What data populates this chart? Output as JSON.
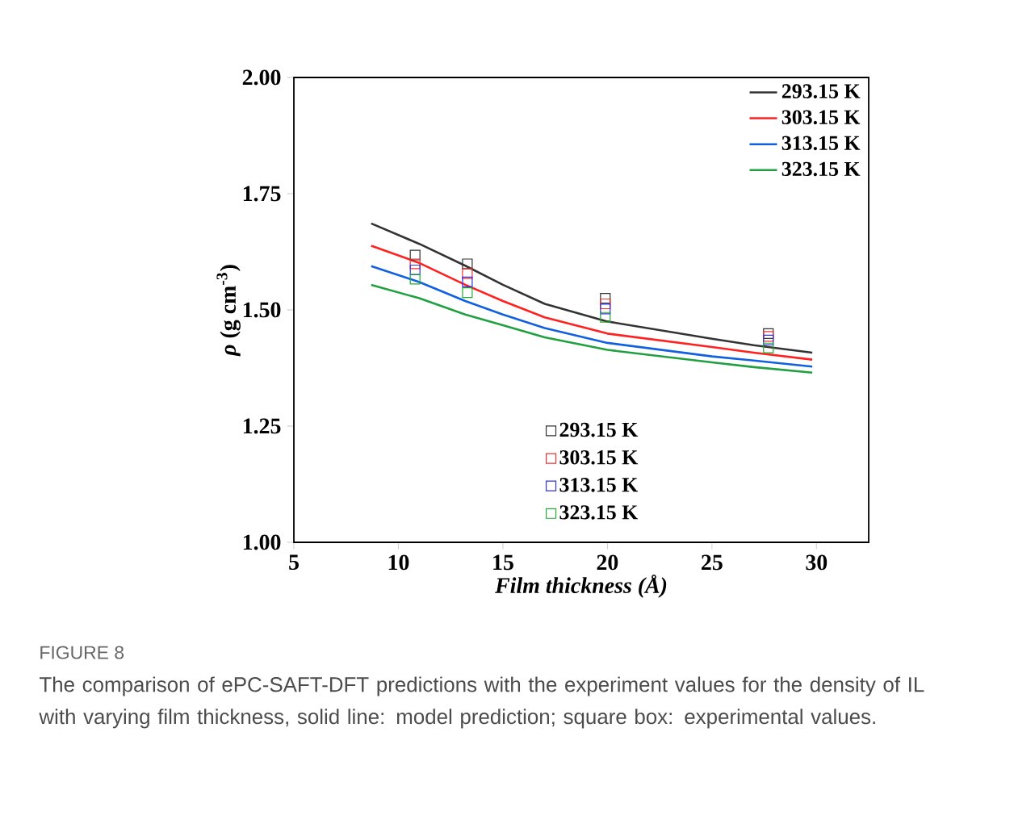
{
  "chart_data": {
    "type": "line",
    "xlabel": "*Film thickness (Å)*",
    "ylabel": "*ρ* (g cm$^{-3}$)",
    "xlim": [
      5,
      32.5
    ],
    "ylim": [
      1,
      2
    ],
    "xticks": [
      5,
      10,
      15,
      20,
      25,
      30
    ],
    "yticks": [
      {
        "value": 1,
        "label": "1.00"
      },
      {
        "value": 1.25,
        "label": "1.25"
      },
      {
        "value": 1.5,
        "label": "1.50"
      },
      {
        "value": 1.75,
        "label": "1.75"
      },
      {
        "value": 2,
        "label": "2.00"
      }
    ],
    "legend": "top right",
    "grid": false,
    "series": [
      {
        "name": "293.15 K",
        "color": "#333333",
        "x": [
          8.7,
          11,
          13.2,
          15,
          17,
          20,
          25,
          27,
          29.8
        ],
        "values": [
          1.686,
          1.642,
          1.595,
          1.554,
          1.513,
          1.475,
          1.438,
          1.424,
          1.408
        ]
      },
      {
        "name": "303.15 K",
        "color": "#ff2020",
        "x": [
          8.7,
          11,
          13.2,
          15,
          17,
          20,
          25,
          27,
          29.8
        ],
        "values": [
          1.638,
          1.601,
          1.554,
          1.519,
          1.484,
          1.449,
          1.42,
          1.408,
          1.393
        ]
      },
      {
        "name": "313.15 K",
        "color": "#1060e0",
        "x": [
          8.7,
          11,
          13.2,
          15,
          17,
          20,
          25,
          27,
          29.8
        ],
        "values": [
          1.594,
          1.56,
          1.519,
          1.49,
          1.461,
          1.429,
          1.4,
          1.391,
          1.378
        ]
      },
      {
        "name": "323.15 K",
        "color": "#20a040",
        "x": [
          8.7,
          11,
          13.2,
          15,
          17,
          20,
          25,
          27,
          29.8
        ],
        "values": [
          1.554,
          1.525,
          1.49,
          1.467,
          1.441,
          1.414,
          1.387,
          1.377,
          1.365
        ]
      },
      {
        "name": "293.15 K",
        "type": "scatter",
        "marker": "square",
        "color": "#333333",
        "x": [
          10.8,
          13.3,
          19.9,
          27.7
        ],
        "values": [
          1.618,
          1.599,
          1.525,
          1.449
        ]
      },
      {
        "name": "303.15 K",
        "type": "scatter",
        "marker": "square",
        "color": "#ee3333",
        "x": [
          10.8,
          13.3,
          19.9,
          27.7
        ],
        "values": [
          1.599,
          1.578,
          1.513,
          1.443
        ]
      },
      {
        "name": "313.15 K",
        "type": "scatter",
        "marker": "square",
        "color": "#3333dd",
        "x": [
          10.8,
          13.3,
          19.9,
          27.7
        ],
        "values": [
          1.586,
          1.56,
          1.502,
          1.435
        ]
      },
      {
        "name": "323.15 K",
        "type": "scatter",
        "marker": "square",
        "color": "#22aa33",
        "x": [
          10.8,
          13.3,
          19.9,
          27.7
        ],
        "values": [
          1.566,
          1.537,
          1.484,
          1.418
        ]
      }
    ],
    "annotations": [
      "FIGURE 8",
      "The comparison of ePC-SAFT-DFT predictions with the experiment values for the density of IL with varying film thickness, solid line: model prediction; square box: experimental values."
    ]
  }
}
